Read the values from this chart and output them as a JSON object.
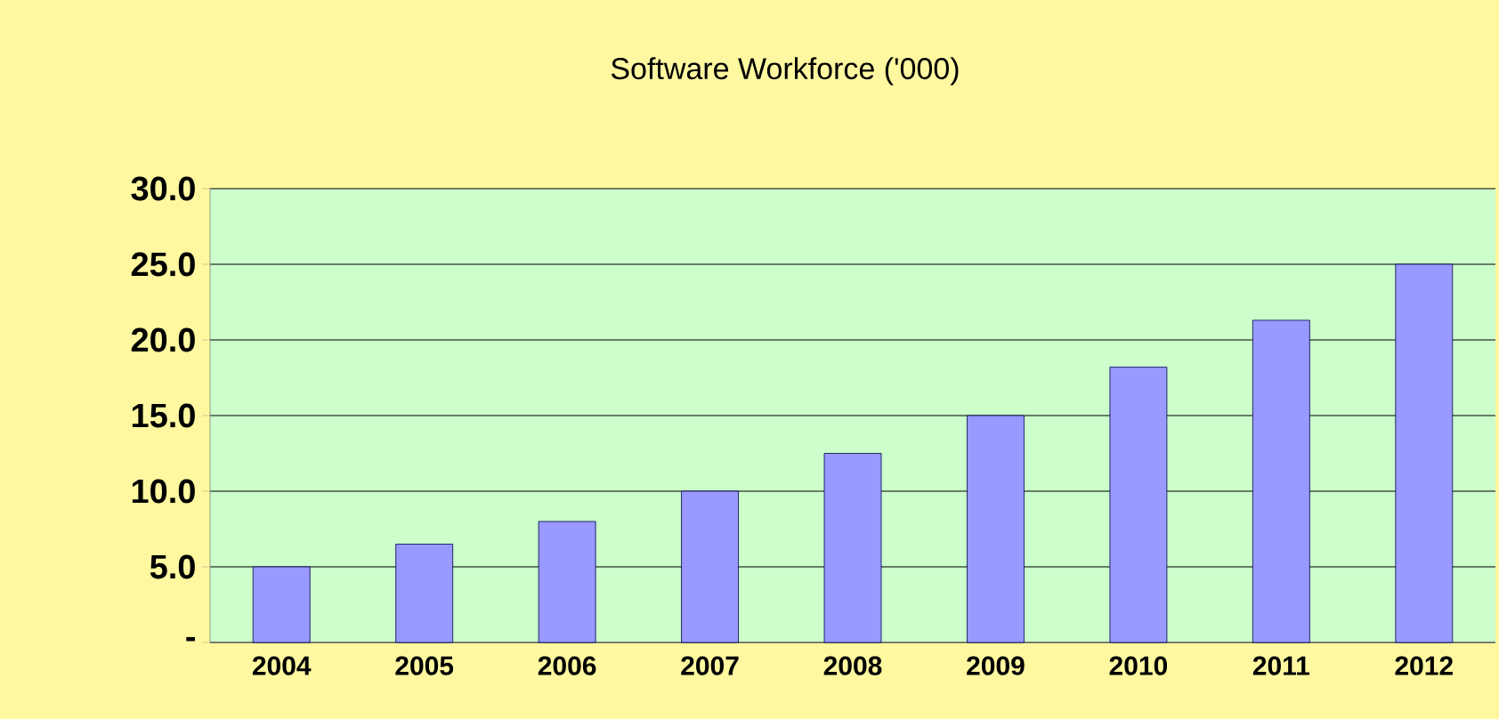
{
  "chart_data": {
    "type": "bar",
    "title": "Software Workforce ('000)",
    "categories": [
      "2004",
      "2005",
      "2006",
      "2007",
      "2008",
      "2009",
      "2010",
      "2011",
      "2012"
    ],
    "values": [
      5.0,
      6.5,
      8.0,
      10.0,
      12.5,
      15.0,
      18.2,
      21.3,
      25.0
    ],
    "color": "#9999ff",
    "ylim": [
      0,
      30
    ],
    "yticks": [
      {
        "value": 0,
        "label": "-"
      },
      {
        "value": 5,
        "label": "5.0"
      },
      {
        "value": 10,
        "label": "10.0"
      },
      {
        "value": 15,
        "label": "15.0"
      },
      {
        "value": 20,
        "label": "20.0"
      },
      {
        "value": 25,
        "label": "25.0"
      },
      {
        "value": 30,
        "label": "30.0"
      }
    ],
    "grid": "y"
  }
}
